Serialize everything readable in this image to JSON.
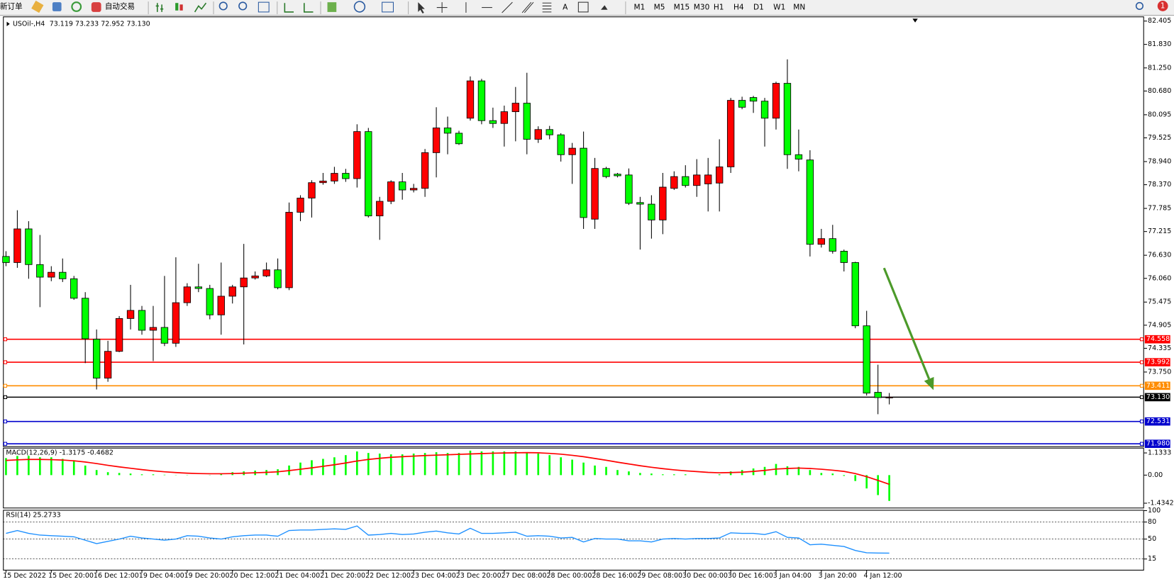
{
  "toolbar": {
    "new_order": "新订单",
    "auto_trading": "自动交易",
    "text_tool": "A",
    "timeframes": [
      "M1",
      "M5",
      "M15",
      "M30",
      "H1",
      "H4",
      "D1",
      "W1",
      "MN"
    ],
    "notifications": 1
  },
  "chart_data": {
    "type": "candlestick",
    "symbol": "USOil-,H4",
    "info": "73.119 73.233 72.952 73.130",
    "categories": [
      "15 Dec 2022",
      null,
      null,
      null,
      "15 Dec 20:00",
      null,
      null,
      null,
      "16 Dec 12:00",
      null,
      null,
      null,
      "19 Dec 04:00",
      null,
      null,
      null,
      "19 Dec 20:00",
      null,
      null,
      null,
      "20 Dec 12:00",
      null,
      null,
      null,
      "21 Dec 04:00",
      null,
      null,
      null,
      "21 Dec 20:00",
      null,
      null,
      null,
      "22 Dec 12:00",
      null,
      null,
      null,
      "23 Dec 04:00",
      null,
      null,
      null,
      "23 Dec 20:00",
      null,
      null,
      null,
      "27 Dec 08:00",
      null,
      null,
      null,
      "28 Dec 00:00",
      null,
      null,
      null,
      "28 Dec 16:00",
      null,
      null,
      null,
      "29 Dec 08:00",
      null,
      null,
      null,
      "30 Dec 00:00",
      null,
      null,
      null,
      "30 Dec 16:00",
      null,
      null,
      null,
      "3 Jan 04:00",
      null,
      null,
      null,
      "3 Jan 20:00",
      null,
      null,
      null,
      "4 Jan 12:00",
      null,
      null
    ],
    "open": [
      76.6,
      76.45,
      77.28,
      76.4,
      76.09,
      76.21,
      76.05,
      75.57,
      74.56,
      73.6,
      74.26,
      75.07,
      75.27,
      74.78,
      74.85,
      74.46,
      75.46,
      75.85,
      75.81,
      75.16,
      75.62,
      75.85,
      76.07,
      76.12,
      76.27,
      75.83,
      77.69,
      78.04,
      78.42,
      78.46,
      78.65,
      78.52,
      79.68,
      77.6,
      77.96,
      78.44,
      78.24,
      78.28,
      79.16,
      79.77,
      79.64,
      80.01,
      80.93,
      79.95,
      79.88,
      80.17,
      80.38,
      79.49,
      79.73,
      79.6,
      79.11,
      79.27,
      77.52,
      78.77,
      78.63,
      78.61,
      77.93,
      77.89,
      77.5,
      78.28,
      78.57,
      78.35,
      78.39,
      78.41,
      78.81,
      80.45,
      80.52,
      80.43,
      80.01,
      80.87,
      79.11,
      78.98,
      76.9,
      77.04,
      76.73,
      76.45,
      74.89,
      73.25,
      73.119
    ],
    "high": [
      76.73,
      77.74,
      77.47,
      77.13,
      76.36,
      76.55,
      76.12,
      75.72,
      74.8,
      74.52,
      75.13,
      75.9,
      75.38,
      75.38,
      76.12,
      76.58,
      75.94,
      76.42,
      75.9,
      76.45,
      75.9,
      76.91,
      76.23,
      76.45,
      76.55,
      77.93,
      78.11,
      78.48,
      78.66,
      78.81,
      78.76,
      79.86,
      79.77,
      78.07,
      78.48,
      78.66,
      78.39,
      79.25,
      80.28,
      80.05,
      79.7,
      81.04,
      80.98,
      80.27,
      80.32,
      80.78,
      81.13,
      79.81,
      79.82,
      79.64,
      79.4,
      79.68,
      79.03,
      78.81,
      78.66,
      78.77,
      78.07,
      78.11,
      78.66,
      78.7,
      78.85,
      79.0,
      79.03,
      79.49,
      80.51,
      80.54,
      80.56,
      80.51,
      80.91,
      81.46,
      79.73,
      79.22,
      77.28,
      77.38,
      76.77,
      76.47,
      75.26,
      73.93,
      73.233
    ],
    "low": [
      76.36,
      76.32,
      76.05,
      75.35,
      75.99,
      75.97,
      75.53,
      73.97,
      73.32,
      73.51,
      74.24,
      74.8,
      74.67,
      74.02,
      74.39,
      74.37,
      75.38,
      75.72,
      75.05,
      74.67,
      75.44,
      74.43,
      76.03,
      76.09,
      75.79,
      75.77,
      77.47,
      77.56,
      78.37,
      78.39,
      78.44,
      78.3,
      77.56,
      77.01,
      77.89,
      78.0,
      78.18,
      78.07,
      78.55,
      79.12,
      79.35,
      79.95,
      79.86,
      79.77,
      79.31,
      79.44,
      79.12,
      79.4,
      79.49,
      78.94,
      78.39,
      77.28,
      77.28,
      78.53,
      78.55,
      77.87,
      76.77,
      77.04,
      77.15,
      78.24,
      78.3,
      78.07,
      77.71,
      77.71,
      78.66,
      80.23,
      80.14,
      79.31,
      79.73,
      78.76,
      78.7,
      76.6,
      76.82,
      76.67,
      76.23,
      74.83,
      73.17,
      72.71,
      72.952
    ],
    "close": [
      76.45,
      77.28,
      76.4,
      76.09,
      76.21,
      76.05,
      75.57,
      74.57,
      73.6,
      74.26,
      75.07,
      75.27,
      74.78,
      74.85,
      74.46,
      75.46,
      75.85,
      75.81,
      75.16,
      75.62,
      75.85,
      76.07,
      76.12,
      76.27,
      75.83,
      77.69,
      78.04,
      78.42,
      78.46,
      78.65,
      78.52,
      79.68,
      77.6,
      77.96,
      78.44,
      78.24,
      78.28,
      79.16,
      79.77,
      79.64,
      79.38,
      80.93,
      79.95,
      79.88,
      80.17,
      80.38,
      79.49,
      79.73,
      79.6,
      79.11,
      79.27,
      77.56,
      78.77,
      78.57,
      78.59,
      77.91,
      77.89,
      77.5,
      78.31,
      78.57,
      78.35,
      78.61,
      78.61,
      78.81,
      80.45,
      80.28,
      80.43,
      80.01,
      80.87,
      79.11,
      79.0,
      76.9,
      77.04,
      76.73,
      76.45,
      74.89,
      73.23,
      73.12,
      73.13
    ],
    "up_color": "#ff0000",
    "down_color": "#00ff00",
    "ylim": [
      71.92,
      82.5
    ],
    "yticks": [
      82.405,
      {
        "value": 81.83,
        "label": "81.830"
      },
      {
        "value": 81.25,
        "label": "81.250"
      },
      {
        "value": 80.68,
        "label": "80.680"
      },
      80.095,
      79.525,
      {
        "value": 78.94,
        "label": "78.940"
      },
      {
        "value": 78.37,
        "label": "78.370"
      },
      77.785,
      77.215,
      {
        "value": 76.63,
        "label": "76.630"
      },
      {
        "value": 76.06,
        "label": "76.060"
      },
      75.475,
      74.905,
      74.335,
      {
        "value": 73.75,
        "label": "73.750"
      }
    ],
    "levels": [
      {
        "value": 74.558,
        "color": "#ff0000"
      },
      {
        "value": 73.992,
        "color": "#ff0000"
      },
      {
        "value": 73.411,
        "color": "#ff8c00"
      },
      {
        "value": 73.13,
        "label": "73.130",
        "color": "#000000"
      },
      {
        "value": 72.531,
        "color": "#0000cd"
      },
      {
        "value": 71.98,
        "label": "71.980",
        "color": "#0000cd"
      }
    ],
    "indicators": [
      {
        "type": "macd",
        "title": "MACD(12,26,9) -1.3175 -0.4682",
        "hist_color": "#00ff00",
        "signal_color": "#ff0000",
        "ylim": [
          -1.66,
          1.36
        ],
        "yticks": [
          1.1333,
          {
            "value": 0,
            "label": "0.00"
          },
          -1.4342
        ],
        "histogram": [
          0.87,
          0.98,
          0.98,
          0.91,
          0.91,
          0.83,
          0.76,
          0.49,
          0.26,
          0.15,
          0.11,
          0.08,
          0.04,
          0.04,
          0.02,
          0.01,
          0.01,
          0.0,
          0.01,
          0.08,
          0.15,
          0.19,
          0.23,
          0.26,
          0.3,
          0.49,
          0.64,
          0.76,
          0.83,
          0.91,
          1.02,
          1.21,
          1.13,
          1.1,
          1.06,
          1.06,
          1.1,
          1.13,
          1.17,
          1.13,
          1.13,
          1.25,
          1.21,
          1.21,
          1.21,
          1.21,
          1.17,
          1.1,
          1.02,
          0.91,
          0.79,
          0.64,
          0.49,
          0.42,
          0.26,
          0.19,
          0.11,
          0.08,
          0.04,
          0.04,
          0.04,
          0.0,
          0.0,
          0.04,
          0.19,
          0.26,
          0.34,
          0.42,
          0.57,
          0.45,
          0.42,
          0.26,
          0.11,
          0.08,
          -0.04,
          -0.3,
          -0.68,
          -1.02,
          -1.3175
        ],
        "signal": [
          0.75,
          0.78,
          0.8,
          0.8,
          0.79,
          0.77,
          0.73,
          0.67,
          0.59,
          0.5,
          0.42,
          0.35,
          0.28,
          0.22,
          0.17,
          0.13,
          0.1,
          0.08,
          0.07,
          0.07,
          0.08,
          0.1,
          0.12,
          0.14,
          0.17,
          0.23,
          0.3,
          0.37,
          0.45,
          0.53,
          0.62,
          0.72,
          0.8,
          0.86,
          0.91,
          0.94,
          0.97,
          1.0,
          1.02,
          1.04,
          1.06,
          1.08,
          1.1,
          1.12,
          1.13,
          1.14,
          1.15,
          1.14,
          1.11,
          1.07,
          1.01,
          0.94,
          0.85,
          0.76,
          0.66,
          0.57,
          0.48,
          0.4,
          0.33,
          0.27,
          0.22,
          0.18,
          0.14,
          0.12,
          0.13,
          0.15,
          0.19,
          0.24,
          0.31,
          0.34,
          0.36,
          0.34,
          0.3,
          0.25,
          0.19,
          0.08,
          -0.08,
          -0.27,
          -0.4682
        ]
      },
      {
        "type": "rsi",
        "title": "RSI(14) 25.2733",
        "color": "#1e90ff",
        "ylim": [
          0,
          100
        ],
        "yticks": [
          100,
          80,
          50,
          15
        ],
        "values": [
          60,
          65,
          60,
          57,
          56,
          55,
          54,
          48,
          42,
          46,
          50,
          55,
          52,
          50,
          48,
          50,
          56,
          55,
          52,
          50,
          54,
          56,
          57,
          57,
          55,
          65,
          66,
          66,
          67,
          68,
          67,
          73,
          57,
          58,
          60,
          58,
          59,
          62,
          64,
          61,
          59,
          69,
          60,
          60,
          61,
          62,
          55,
          56,
          55,
          52,
          53,
          45,
          51,
          50,
          50,
          47,
          47,
          45,
          50,
          51,
          50,
          51,
          51,
          52,
          61,
          60,
          60,
          58,
          63,
          53,
          52,
          40,
          41,
          39,
          37,
          30,
          26,
          25.5,
          25.2733
        ]
      }
    ]
  }
}
